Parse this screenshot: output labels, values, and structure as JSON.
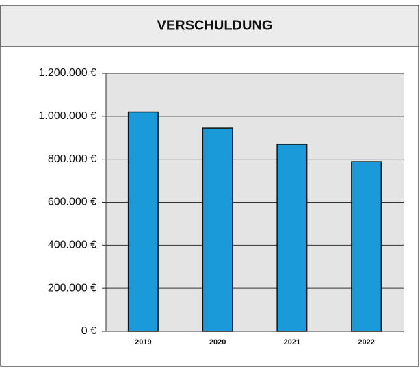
{
  "chart_data": {
    "type": "bar",
    "title": "VERSCHULDUNG",
    "categories": [
      "2019",
      "2020",
      "2021",
      "2022"
    ],
    "values": [
      1020000,
      945000,
      869000,
      789000
    ],
    "color": "#1a9ad9",
    "ylim": [
      0,
      1200000
    ],
    "yticks": [
      {
        "value": 0,
        "label": "0 €"
      },
      {
        "value": 200000,
        "label": "200.000 €"
      },
      {
        "value": 400000,
        "label": "400.000 €"
      },
      {
        "value": 600000,
        "label": "600.000 €"
      },
      {
        "value": 800000,
        "label": "800.000 €"
      },
      {
        "value": 1000000,
        "label": "1.000.000 €"
      },
      {
        "value": 1200000,
        "label": "1.200.000 €"
      }
    ],
    "grid": true
  }
}
